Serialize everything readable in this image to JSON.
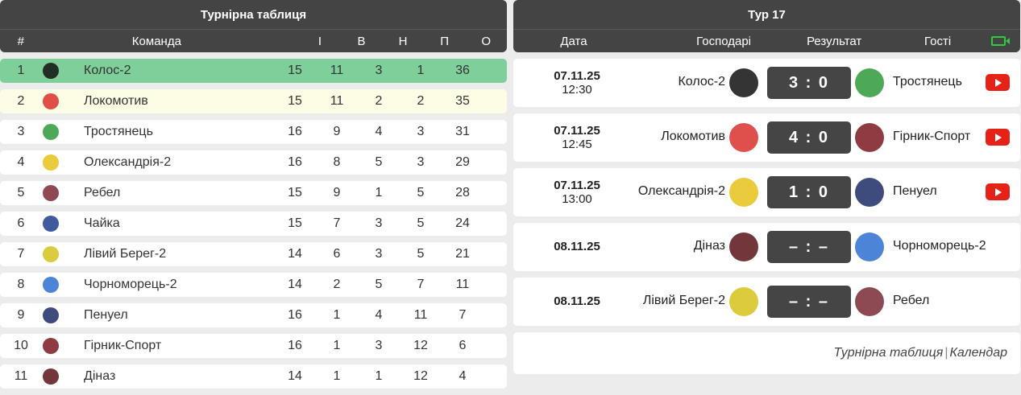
{
  "standings": {
    "title": "Турнірна таблиця",
    "headers": {
      "pos": "#",
      "team": "Команда",
      "played": "І",
      "won": "В",
      "draw": "Н",
      "lost": "П",
      "points": "О"
    },
    "rows": [
      {
        "pos": "1",
        "team": "Колос-2",
        "played": "15",
        "won": "11",
        "draw": "3",
        "lost": "1",
        "points": "36",
        "logo_color": "#111111"
      },
      {
        "pos": "2",
        "team": "Локомотив",
        "played": "15",
        "won": "11",
        "draw": "2",
        "lost": "2",
        "points": "35",
        "logo_color": "#d9302c"
      },
      {
        "pos": "3",
        "team": "Тростянець",
        "played": "16",
        "won": "9",
        "draw": "4",
        "lost": "3",
        "points": "31",
        "logo_color": "#2e9a3a"
      },
      {
        "pos": "4",
        "team": "Олександрія-2",
        "played": "16",
        "won": "8",
        "draw": "5",
        "lost": "3",
        "points": "29",
        "logo_color": "#e6c21a"
      },
      {
        "pos": "5",
        "team": "Ребел",
        "played": "15",
        "won": "9",
        "draw": "1",
        "lost": "5",
        "points": "28",
        "logo_color": "#7a2a35"
      },
      {
        "pos": "6",
        "team": "Чайка",
        "played": "15",
        "won": "7",
        "draw": "3",
        "lost": "5",
        "points": "24",
        "logo_color": "#1f3e8c"
      },
      {
        "pos": "7",
        "team": "Лівий Берег-2",
        "played": "14",
        "won": "6",
        "draw": "3",
        "lost": "5",
        "points": "21",
        "logo_color": "#d6c21a"
      },
      {
        "pos": "8",
        "team": "Чорноморець-2",
        "played": "14",
        "won": "2",
        "draw": "5",
        "lost": "7",
        "points": "11",
        "logo_color": "#2d6fd1"
      },
      {
        "pos": "9",
        "team": "Пенуел",
        "played": "16",
        "won": "1",
        "draw": "4",
        "lost": "11",
        "points": "7",
        "logo_color": "#1c2d66"
      },
      {
        "pos": "10",
        "team": "Гірник-Спорт",
        "played": "16",
        "won": "1",
        "draw": "3",
        "lost": "12",
        "points": "6",
        "logo_color": "#7a1a20"
      },
      {
        "pos": "11",
        "team": "Діназ",
        "played": "14",
        "won": "1",
        "draw": "1",
        "lost": "12",
        "points": "4",
        "logo_color": "#5a1318"
      }
    ]
  },
  "round": {
    "title": "Тур 17",
    "headers": {
      "date": "Дата",
      "home": "Господарі",
      "result": "Результат",
      "away": "Гості"
    },
    "matches": [
      {
        "date": "07.11.25",
        "time": "12:30",
        "home": "Колос-2",
        "score": "3 : 0",
        "away": "Тростянець",
        "video": true,
        "home_color": "#111111",
        "away_color": "#2e9a3a"
      },
      {
        "date": "07.11.25",
        "time": "12:45",
        "home": "Локомотив",
        "score": "4 : 0",
        "away": "Гірник-Спорт",
        "video": true,
        "home_color": "#d9302c",
        "away_color": "#7a1a20"
      },
      {
        "date": "07.11.25",
        "time": "13:00",
        "home": "Олександрія-2",
        "score": "1 : 0",
        "away": "Пенуел",
        "video": true,
        "home_color": "#e6c21a",
        "away_color": "#1c2d66"
      },
      {
        "date": "08.11.25",
        "time": "",
        "home": "Діназ",
        "score": "– : –",
        "away": "Чорноморець-2",
        "video": false,
        "home_color": "#5a1318",
        "away_color": "#2d6fd1"
      },
      {
        "date": "08.11.25",
        "time": "",
        "home": "Лівий Берег-2",
        "score": "– : –",
        "away": "Ребел",
        "video": false,
        "home_color": "#d6c21a",
        "away_color": "#7a2a35"
      }
    ],
    "links": {
      "table": "Турнірна таблиця",
      "separator": "|",
      "calendar": "Календар"
    }
  },
  "colors": {
    "header_bg": "#444444",
    "leader_row": "#7ecf9a",
    "second_row": "#fdfde6",
    "score_bg": "#454545",
    "youtube": "#e62117",
    "video_icon": "#2ecc40"
  },
  "icons": {
    "video_header": "video-camera-icon",
    "youtube": "youtube-icon"
  }
}
